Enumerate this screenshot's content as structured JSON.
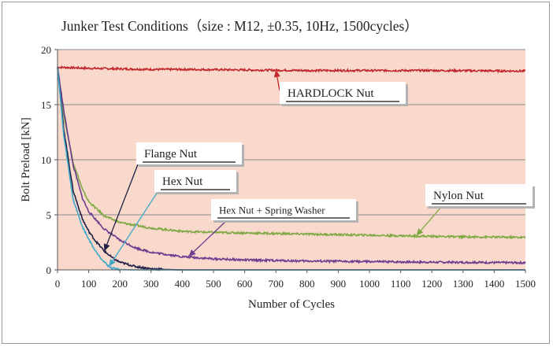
{
  "chart_data": {
    "type": "line",
    "title": "Junker Test Conditions（size : M12, ±0.35, 10Hz, 1500cycles）",
    "xlabel": "Number of Cycles",
    "ylabel": "Bolt Preload [kN]",
    "xlim": [
      0,
      1500
    ],
    "ylim": [
      0,
      20
    ],
    "xticks": [
      0,
      100,
      200,
      300,
      400,
      500,
      600,
      700,
      800,
      900,
      1000,
      1100,
      1200,
      1300,
      1400,
      1500
    ],
    "yticks": [
      0,
      5,
      10,
      15,
      20
    ],
    "grid": "horizontal",
    "background": "#f9d9cb",
    "series": [
      {
        "name": "HARDLOCK Nut",
        "color": "#c0282d",
        "x": [
          0,
          100,
          200,
          300,
          400,
          600,
          800,
          1000,
          1200,
          1500
        ],
        "y": [
          18.4,
          18.3,
          18.25,
          18.2,
          18.2,
          18.15,
          18.1,
          18.1,
          18.1,
          18.05
        ]
      },
      {
        "name": "Nylon Nut",
        "color": "#7ea844",
        "x": [
          0,
          20,
          50,
          80,
          100,
          150,
          200,
          300,
          400,
          500,
          700,
          900,
          1100,
          1300,
          1500
        ],
        "y": [
          18.5,
          14.0,
          9.8,
          7.3,
          6.2,
          4.9,
          4.3,
          3.8,
          3.5,
          3.4,
          3.3,
          3.2,
          3.1,
          3.0,
          2.95
        ]
      },
      {
        "name": "Hex Nut + Spring Washer",
        "color": "#6a3d8f",
        "x": [
          0,
          20,
          50,
          80,
          100,
          150,
          200,
          250,
          300,
          400,
          500,
          600,
          800,
          1000,
          1200,
          1500
        ],
        "y": [
          18.4,
          14.5,
          9.5,
          6.5,
          5.3,
          3.7,
          2.7,
          2.0,
          1.6,
          1.2,
          1.0,
          0.9,
          0.8,
          0.75,
          0.7,
          0.65
        ]
      },
      {
        "name": "Flange Nut",
        "color": "#1f1f48",
        "x": [
          0,
          20,
          50,
          80,
          100,
          120,
          150,
          180,
          200,
          250,
          300,
          350,
          400,
          600,
          1000,
          1500
        ],
        "y": [
          18.4,
          12.8,
          7.2,
          4.6,
          3.5,
          2.7,
          1.7,
          1.0,
          0.7,
          0.3,
          0.1,
          0.03,
          0,
          0,
          0,
          0
        ]
      },
      {
        "name": "Hex Nut",
        "color": "#3fa9c9",
        "x": [
          0,
          20,
          50,
          80,
          100,
          120,
          150,
          170,
          200,
          250,
          300,
          400,
          600,
          1000,
          1500
        ],
        "y": [
          18.4,
          12.2,
          6.4,
          3.9,
          2.8,
          1.8,
          0.7,
          0.2,
          0.03,
          0,
          0,
          0,
          0,
          0,
          0
        ]
      }
    ],
    "annotations": [
      {
        "text": "HARDLOCK Nut",
        "series": "HARDLOCK Nut",
        "point": [
          700,
          18.15
        ]
      },
      {
        "text": "Nylon Nut",
        "series": "Nylon Nut",
        "point": [
          1150,
          3.1
        ]
      },
      {
        "text": "Hex Nut + Spring Washer",
        "series": "Hex Nut + Spring Washer",
        "point": [
          420,
          1.2
        ]
      },
      {
        "text": "Flange Nut",
        "series": "Flange Nut",
        "point": [
          150,
          1.7
        ]
      },
      {
        "text": "Hex Nut",
        "series": "Hex Nut",
        "point": [
          165,
          0.3
        ]
      }
    ]
  }
}
